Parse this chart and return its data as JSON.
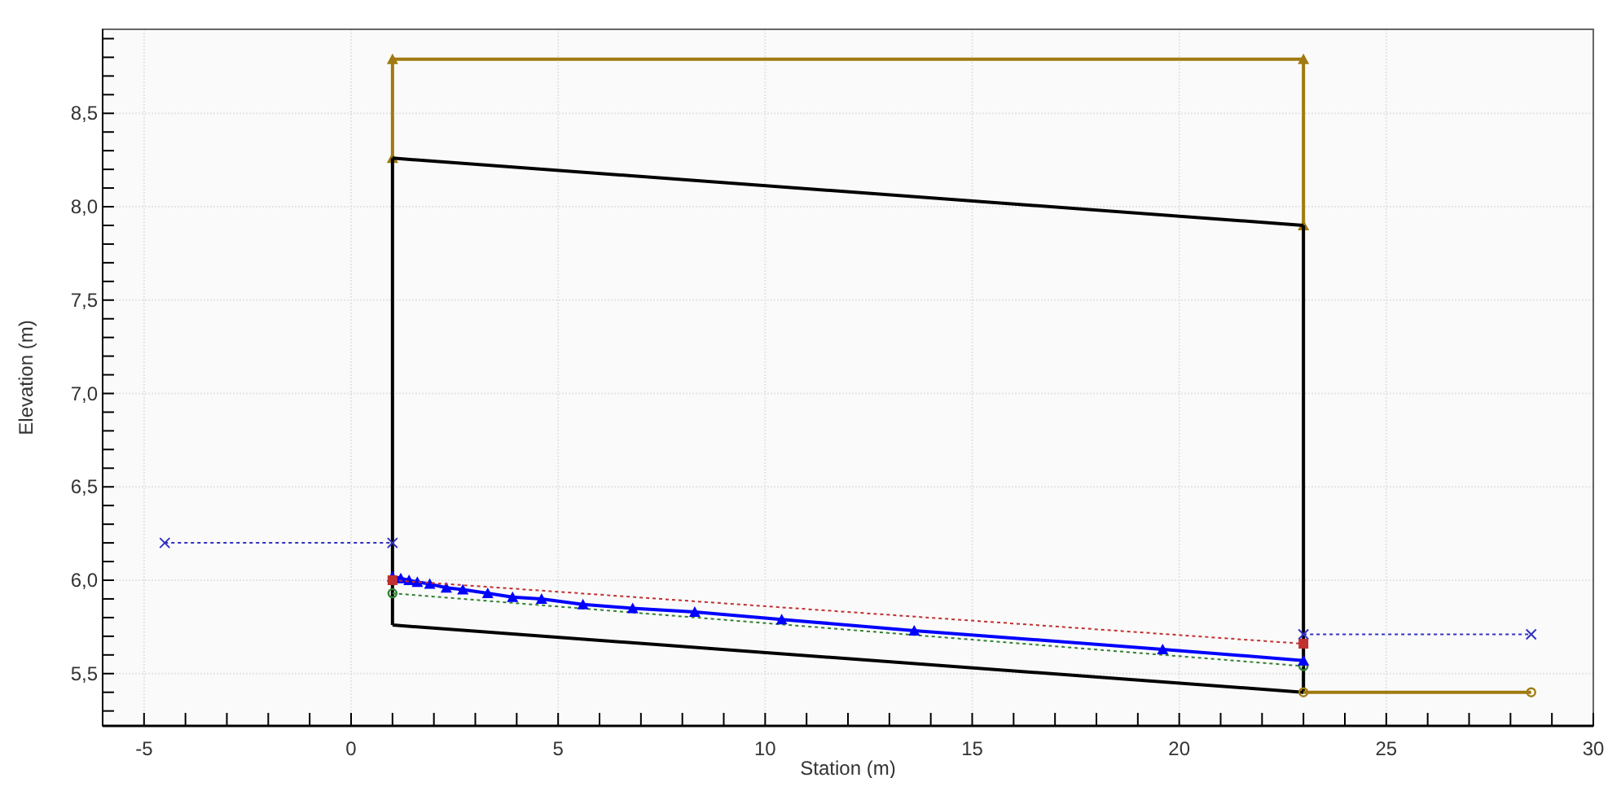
{
  "chart_data": {
    "type": "line",
    "xlabel": "Station (m)",
    "ylabel": "Elevation (m)",
    "xlim": [
      -6,
      30
    ],
    "ylim": [
      5.22,
      8.95
    ],
    "xticks": [
      {
        "value": -5,
        "label": "-5"
      },
      {
        "value": -4,
        "label": null
      },
      {
        "value": -3,
        "label": null
      },
      {
        "value": -2,
        "label": null
      },
      {
        "value": -1,
        "label": null
      },
      0,
      {
        "value": 1,
        "label": null
      },
      {
        "value": 2,
        "label": null
      },
      {
        "value": 3,
        "label": null
      },
      {
        "value": 4,
        "label": null
      },
      5,
      {
        "value": 6,
        "label": null
      },
      {
        "value": 7,
        "label": null
      },
      {
        "value": 8,
        "label": null
      },
      {
        "value": 9,
        "label": null
      },
      10,
      {
        "value": 11,
        "label": null
      },
      {
        "value": 12,
        "label": null
      },
      {
        "value": 13,
        "label": null
      },
      {
        "value": 14,
        "label": null
      },
      15,
      {
        "value": 16,
        "label": null
      },
      {
        "value": 17,
        "label": null
      },
      {
        "value": 18,
        "label": null
      },
      {
        "value": 19,
        "label": null
      },
      20,
      {
        "value": 21,
        "label": null
      },
      {
        "value": 22,
        "label": null
      },
      {
        "value": 23,
        "label": null
      },
      {
        "value": 24,
        "label": null
      },
      25,
      {
        "value": 26,
        "label": null
      },
      {
        "value": 27,
        "label": null
      },
      {
        "value": 28,
        "label": null
      },
      {
        "value": 29,
        "label": null
      },
      30
    ],
    "yticks": [
      {
        "value": 5.3,
        "label": null
      },
      {
        "value": 5.4,
        "label": null
      },
      {
        "value": 5.5,
        "label": "5,5"
      },
      {
        "value": 5.6,
        "label": null
      },
      {
        "value": 5.7,
        "label": null
      },
      {
        "value": 5.8,
        "label": null
      },
      {
        "value": 5.9,
        "label": null
      },
      {
        "value": 6.0,
        "label": "6,0"
      },
      {
        "value": 6.1,
        "label": null
      },
      {
        "value": 6.2,
        "label": null
      },
      {
        "value": 6.3,
        "label": null
      },
      {
        "value": 6.4,
        "label": null
      },
      {
        "value": 6.5,
        "label": "6,5"
      },
      {
        "value": 6.6,
        "label": null
      },
      {
        "value": 6.7,
        "label": null
      },
      {
        "value": 6.8,
        "label": null
      },
      {
        "value": 6.9,
        "label": null
      },
      {
        "value": 7.0,
        "label": "7,0"
      },
      {
        "value": 7.1,
        "label": null
      },
      {
        "value": 7.2,
        "label": null
      },
      {
        "value": 7.3,
        "label": null
      },
      {
        "value": 7.4,
        "label": null
      },
      {
        "value": 7.5,
        "label": "7,5"
      },
      {
        "value": 7.6,
        "label": null
      },
      {
        "value": 7.7,
        "label": null
      },
      {
        "value": 7.8,
        "label": null
      },
      {
        "value": 7.9,
        "label": null
      },
      {
        "value": 8.0,
        "label": "8,0"
      },
      {
        "value": 8.1,
        "label": null
      },
      {
        "value": 8.2,
        "label": null
      },
      {
        "value": 8.3,
        "label": null
      },
      {
        "value": 8.4,
        "label": null
      },
      {
        "value": 8.5,
        "label": "8,5"
      },
      {
        "value": 8.6,
        "label": null
      },
      {
        "value": 8.7,
        "label": null
      },
      {
        "value": 8.8,
        "label": null
      },
      {
        "value": 8.9,
        "label": null
      }
    ],
    "grid": true,
    "series": [
      {
        "color": "#a07a10",
        "x": [
          1,
          1,
          23,
          23
        ],
        "values": [
          8.26,
          8.79,
          8.79,
          7.9
        ],
        "marker": "triangle",
        "line_style": "solid"
      },
      {
        "color": "#000000",
        "x": [
          1,
          23
        ],
        "values": [
          8.26,
          7.9
        ],
        "marker": "none",
        "line_style": "solid"
      },
      {
        "color": "#000000",
        "x": [
          1,
          23
        ],
        "values": [
          5.76,
          5.4
        ],
        "marker": "none",
        "line_style": "solid"
      },
      {
        "color": "#000000",
        "x": [
          1,
          1
        ],
        "values": [
          5.76,
          8.26
        ],
        "marker": "none",
        "line_style": "solid"
      },
      {
        "color": "#000000",
        "x": [
          23,
          23
        ],
        "values": [
          5.4,
          7.9
        ],
        "marker": "none",
        "line_style": "solid"
      },
      {
        "color": "#3030c0",
        "x": [
          -4.5,
          1
        ],
        "values": [
          6.2,
          6.2
        ],
        "marker": "cross",
        "line_style": "dotted"
      },
      {
        "color": "#3030c0",
        "x": [
          23,
          28.5
        ],
        "values": [
          5.71,
          5.71
        ],
        "marker": "cross",
        "line_style": "dotted"
      },
      {
        "color": "#a07a10",
        "x": [
          23,
          28.5
        ],
        "values": [
          5.4,
          5.4
        ],
        "marker": "circle",
        "line_style": "solid"
      },
      {
        "color": "#308030",
        "x": [
          1,
          23
        ],
        "values": [
          5.93,
          5.54
        ],
        "marker": "circle",
        "line_style": "dotted"
      },
      {
        "color": "#0000ff",
        "x": [
          1,
          1.2,
          1.4,
          1.6,
          1.9,
          2.3,
          2.7,
          3.3,
          3.9,
          4.6,
          5.6,
          6.8,
          8.3,
          10.4,
          13.6,
          19.6,
          23
        ],
        "values": [
          6.02,
          6.01,
          6.0,
          5.99,
          5.98,
          5.96,
          5.95,
          5.93,
          5.91,
          5.9,
          5.87,
          5.85,
          5.83,
          5.79,
          5.73,
          5.63,
          5.57
        ],
        "marker": "triangle",
        "line_style": "solid"
      },
      {
        "color": "#c03030",
        "x": [
          1,
          23
        ],
        "values": [
          6.0,
          5.66
        ],
        "marker": "square",
        "line_style": "dotted"
      }
    ]
  }
}
